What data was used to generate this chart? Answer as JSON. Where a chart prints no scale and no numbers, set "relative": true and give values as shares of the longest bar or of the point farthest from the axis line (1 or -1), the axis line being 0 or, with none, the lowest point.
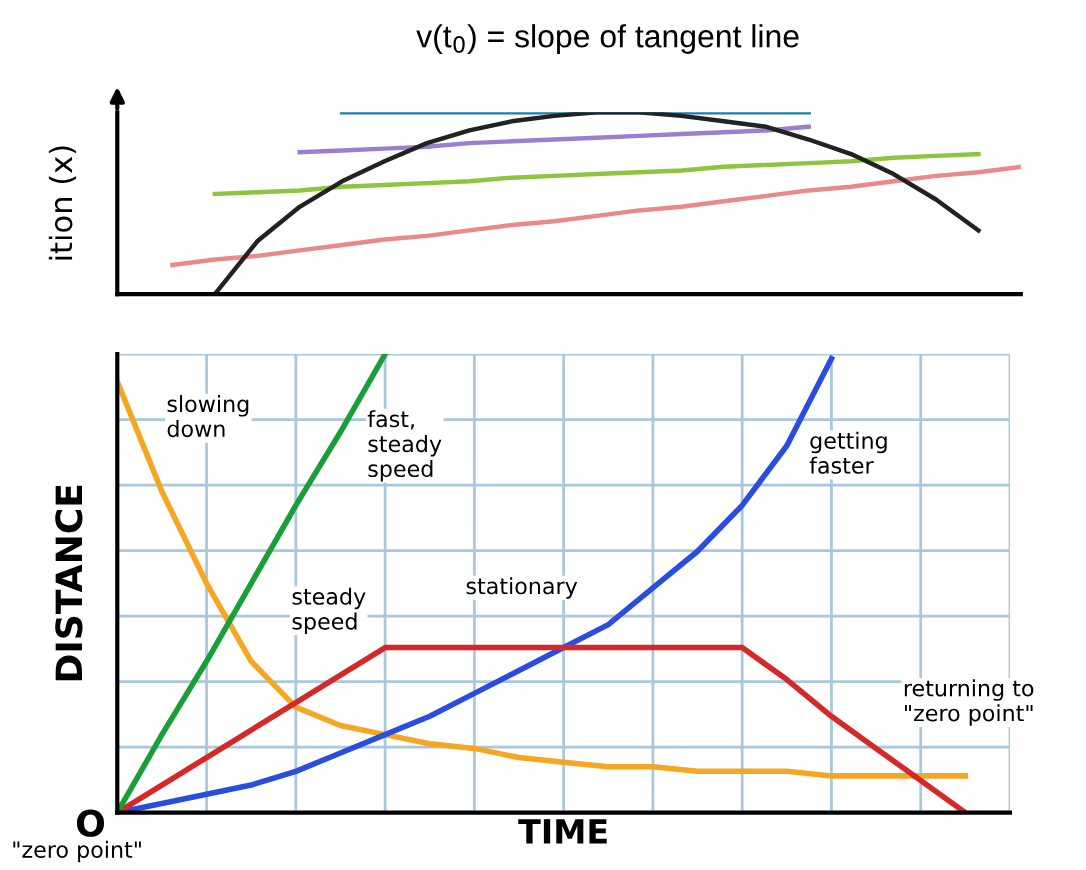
{
  "chart_data": [
    {
      "type": "line",
      "relative": true,
      "title": "v(t$_{0}$) = slope of tangent line",
      "ylabel": "ition (x)",
      "grid": false,
      "legend": false,
      "categories": [
        null,
        null,
        null,
        null,
        null,
        null,
        null,
        null,
        null,
        null,
        null,
        null,
        null,
        null,
        null,
        null,
        null,
        null,
        null,
        null,
        null
      ],
      "series": [
        {
          "color": "#e98a8a",
          "values": [
            0.16,
            0.19,
            0.21,
            0.24,
            0.27,
            0.3,
            0.32,
            0.35,
            0.38,
            0.4,
            0.43,
            0.46,
            0.48,
            0.51,
            0.54,
            0.57,
            0.59,
            0.62,
            0.65,
            0.67,
            0.7
          ]
        },
        {
          "color": "#8cc63f",
          "values": [
            null,
            0.55,
            0.56,
            0.57,
            0.59,
            0.6,
            0.61,
            0.62,
            0.64,
            0.65,
            0.66,
            0.67,
            0.68,
            0.7,
            0.71,
            0.72,
            0.73,
            0.75,
            0.76,
            0.77,
            null
          ]
        },
        {
          "color": "#9a7fd0",
          "values": [
            null,
            null,
            null,
            0.78,
            0.79,
            0.8,
            0.81,
            0.83,
            0.84,
            0.85,
            0.86,
            0.87,
            0.88,
            0.89,
            0.9,
            0.92,
            null,
            null,
            null,
            null,
            null
          ]
        },
        {
          "color": "#1a7fa8",
          "values": [
            null,
            null,
            null,
            null,
            1.0,
            1.0,
            1.0,
            1.0,
            1.0,
            1.0,
            1.0,
            1.0,
            1.0,
            1.0,
            1.0,
            1.0,
            null,
            null,
            null,
            null,
            null
          ]
        },
        {
          "color": "#222222",
          "values": [
            null,
            0,
            0.29,
            0.48,
            0.62,
            0.73,
            0.83,
            0.9,
            0.95,
            0.98,
            1.0,
            1.0,
            0.98,
            0.95,
            0.92,
            0.85,
            0.77,
            0.66,
            0.52,
            0.35,
            null
          ]
        }
      ]
    },
    {
      "type": "line",
      "relative": true,
      "xlabel": "TIME",
      "ylabel": "DISTANCE",
      "grid": true,
      "legend": false,
      "categories": [
        null,
        null,
        null,
        null,
        null,
        null,
        null,
        null,
        null,
        null,
        null,
        null,
        null,
        null,
        null,
        null,
        null,
        null,
        null,
        null,
        null
      ],
      "series": [
        {
          "color": "#f5a623",
          "values": [
            0.94,
            0.7,
            0.5,
            0.33,
            0.23,
            0.19,
            0.17,
            0.15,
            0.14,
            0.12,
            0.11,
            0.1,
            0.1,
            0.09,
            0.09,
            0.09,
            0.08,
            0.08,
            0.08,
            0.08,
            null
          ]
        },
        {
          "color": "#2a4de0",
          "values": [
            0,
            0.02,
            0.04,
            0.06,
            0.09,
            0.13,
            0.17,
            0.21,
            0.26,
            0.31,
            0.36,
            0.41,
            0.49,
            0.57,
            0.67,
            0.8,
            0.99,
            null,
            null,
            null,
            null
          ]
        },
        {
          "color": "#d62828",
          "values": [
            0,
            0.06,
            0.12,
            0.18,
            0.24,
            0.3,
            0.36,
            0.36,
            0.36,
            0.36,
            0.36,
            0.36,
            0.36,
            0.36,
            0.36,
            0.29,
            0.21,
            0.14,
            0.07,
            0,
            null
          ]
        },
        {
          "color": "#1a9e3a",
          "values": [
            0,
            0.17,
            0.33,
            0.5,
            0.67,
            0.83,
            1,
            null,
            null,
            null,
            null,
            null,
            null,
            null,
            null,
            null,
            null,
            null,
            null,
            null,
            null
          ]
        }
      ],
      "annotations": [
        "slowing\ndown",
        "fast,\nsteady\nspeed",
        "getting\nfaster",
        "steady\nspeed",
        "stationary",
        "returning to\n\"zero point\"",
        "O",
        "\"zero point\""
      ]
    }
  ]
}
